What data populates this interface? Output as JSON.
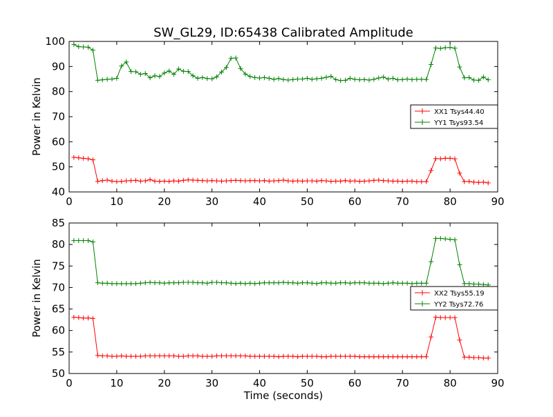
{
  "figure": {
    "title": "SW_GL29, ID:65438 Calibrated Amplitude"
  },
  "chart_data": [
    {
      "type": "line",
      "title": "SW_GL29, ID:65438 Calibrated Amplitude",
      "xlabel": "",
      "ylabel": "Power in Kelvin",
      "xlim": [
        0,
        90
      ],
      "ylim": [
        40,
        100
      ],
      "xticks": [
        0,
        10,
        20,
        30,
        40,
        50,
        60,
        70,
        80,
        90
      ],
      "yticks": [
        40,
        50,
        60,
        70,
        80,
        90,
        100
      ],
      "grid": false,
      "legend_position": "right",
      "x": [
        1,
        2,
        3,
        4,
        5,
        6,
        7,
        8,
        9,
        10,
        11,
        12,
        13,
        14,
        15,
        16,
        17,
        18,
        19,
        20,
        21,
        22,
        23,
        24,
        25,
        26,
        27,
        28,
        29,
        30,
        31,
        32,
        33,
        34,
        35,
        36,
        37,
        38,
        39,
        40,
        41,
        42,
        43,
        44,
        45,
        46,
        47,
        48,
        49,
        50,
        51,
        52,
        53,
        54,
        55,
        56,
        57,
        58,
        59,
        60,
        61,
        62,
        63,
        64,
        65,
        66,
        67,
        68,
        69,
        70,
        71,
        72,
        73,
        74,
        75,
        76,
        77,
        78,
        79,
        80,
        81,
        82,
        83,
        84,
        85,
        86,
        87,
        88
      ],
      "series": [
        {
          "name": "XX1 Tsys44.40",
          "color": "#ff0000",
          "values": [
            53.8,
            53.6,
            53.4,
            53.2,
            52.8,
            44.2,
            44.5,
            44.7,
            44.3,
            44.1,
            44.2,
            44.4,
            44.5,
            44.6,
            44.3,
            44.4,
            44.9,
            44.3,
            44.2,
            44.3,
            44.2,
            44.4,
            44.3,
            44.6,
            44.8,
            44.7,
            44.6,
            44.5,
            44.4,
            44.5,
            44.4,
            44.3,
            44.4,
            44.5,
            44.6,
            44.5,
            44.4,
            44.5,
            44.5,
            44.4,
            44.5,
            44.3,
            44.4,
            44.5,
            44.7,
            44.4,
            44.3,
            44.4,
            44.3,
            44.4,
            44.4,
            44.3,
            44.5,
            44.4,
            44.2,
            44.3,
            44.3,
            44.5,
            44.3,
            44.4,
            44.2,
            44.3,
            44.4,
            44.6,
            44.7,
            44.5,
            44.4,
            44.3,
            44.3,
            44.2,
            44.3,
            44.3,
            44.1,
            44.1,
            44.1,
            48.5,
            53.3,
            53.2,
            53.4,
            53.4,
            53.2,
            47.5,
            44.1,
            44.2,
            43.9,
            43.8,
            43.9,
            43.6
          ]
        },
        {
          "name": "YY1 Tsys93.54",
          "color": "#008000",
          "values": [
            98.8,
            97.9,
            97.8,
            97.7,
            96.5,
            84.5,
            84.7,
            84.9,
            85.0,
            85.3,
            90.2,
            91.8,
            88.0,
            87.9,
            86.9,
            87.2,
            85.5,
            86.3,
            86.0,
            87.4,
            88.2,
            86.9,
            89.0,
            88.1,
            88.0,
            86.3,
            85.3,
            85.6,
            85.2,
            85.1,
            85.9,
            87.8,
            89.6,
            93.3,
            93.4,
            89.2,
            87.0,
            86.0,
            85.6,
            85.4,
            85.6,
            85.3,
            84.9,
            85.2,
            84.8,
            84.6,
            84.8,
            85.0,
            85.0,
            85.3,
            84.9,
            85.1,
            85.3,
            85.7,
            86.1,
            84.8,
            84.4,
            84.5,
            85.3,
            84.9,
            84.7,
            84.8,
            84.6,
            84.9,
            85.4,
            85.8,
            85.0,
            85.3,
            84.7,
            84.8,
            85.0,
            84.8,
            84.9,
            84.9,
            84.8,
            90.8,
            97.4,
            97.2,
            97.5,
            97.6,
            97.3,
            89.8,
            85.5,
            85.6,
            84.6,
            84.5,
            85.8,
            84.7
          ]
        }
      ]
    },
    {
      "type": "line",
      "title": "",
      "xlabel": "Time (seconds)",
      "ylabel": "Power in Kelvin",
      "xlim": [
        0,
        90
      ],
      "ylim": [
        50,
        85
      ],
      "xticks": [
        0,
        10,
        20,
        30,
        40,
        50,
        60,
        70,
        80,
        90
      ],
      "yticks": [
        50,
        55,
        60,
        65,
        70,
        75,
        80,
        85
      ],
      "grid": false,
      "legend_position": "right",
      "x": [
        1,
        2,
        3,
        4,
        5,
        6,
        7,
        8,
        9,
        10,
        11,
        12,
        13,
        14,
        15,
        16,
        17,
        18,
        19,
        20,
        21,
        22,
        23,
        24,
        25,
        26,
        27,
        28,
        29,
        30,
        31,
        32,
        33,
        34,
        35,
        36,
        37,
        38,
        39,
        40,
        41,
        42,
        43,
        44,
        45,
        46,
        47,
        48,
        49,
        50,
        51,
        52,
        53,
        54,
        55,
        56,
        57,
        58,
        59,
        60,
        61,
        62,
        63,
        64,
        65,
        66,
        67,
        68,
        69,
        70,
        71,
        72,
        73,
        74,
        75,
        76,
        77,
        78,
        79,
        80,
        81,
        82,
        83,
        84,
        85,
        86,
        87,
        88
      ],
      "series": [
        {
          "name": "XX2 Tsys55.19",
          "color": "#ff0000",
          "values": [
            63.1,
            63.0,
            62.9,
            62.9,
            62.8,
            54.2,
            54.1,
            54.1,
            54.0,
            54.0,
            54.1,
            54.0,
            54.0,
            54.0,
            54.0,
            54.1,
            54.1,
            54.1,
            54.1,
            54.1,
            54.1,
            54.1,
            54.0,
            54.0,
            54.1,
            54.1,
            54.1,
            54.0,
            54.0,
            54.0,
            54.1,
            54.1,
            54.1,
            54.1,
            54.1,
            54.1,
            54.1,
            54.0,
            54.0,
            54.0,
            54.0,
            54.0,
            54.0,
            53.9,
            54.0,
            54.0,
            54.0,
            53.9,
            54.0,
            54.0,
            54.0,
            54.0,
            53.9,
            53.9,
            54.0,
            54.0,
            54.0,
            54.0,
            54.0,
            54.0,
            53.9,
            53.9,
            53.9,
            53.9,
            53.9,
            53.9,
            53.9,
            53.9,
            53.9,
            53.9,
            53.9,
            53.9,
            53.9,
            53.9,
            53.9,
            58.5,
            63.1,
            63.0,
            63.0,
            63.0,
            63.0,
            57.8,
            53.8,
            53.8,
            53.7,
            53.7,
            53.6,
            53.6
          ]
        },
        {
          "name": "YY2 Tsys72.76",
          "color": "#008000",
          "values": [
            80.9,
            80.9,
            80.9,
            80.9,
            80.6,
            71.1,
            71.0,
            71.0,
            70.9,
            70.9,
            70.9,
            70.9,
            70.9,
            70.9,
            71.0,
            71.1,
            71.2,
            71.1,
            71.1,
            71.0,
            71.1,
            71.1,
            71.1,
            71.2,
            71.2,
            71.2,
            71.1,
            71.1,
            71.0,
            71.2,
            71.2,
            71.1,
            71.1,
            71.0,
            70.9,
            71.0,
            70.9,
            71.0,
            70.9,
            71.0,
            71.1,
            71.1,
            71.1,
            71.1,
            71.2,
            71.1,
            71.1,
            71.0,
            71.1,
            71.1,
            71.0,
            70.9,
            71.1,
            71.1,
            71.0,
            71.0,
            71.1,
            71.1,
            71.0,
            71.1,
            71.1,
            71.1,
            71.0,
            71.0,
            71.0,
            70.9,
            71.0,
            71.1,
            71.0,
            71.0,
            71.0,
            70.9,
            71.0,
            71.0,
            71.0,
            76.0,
            81.4,
            81.4,
            81.3,
            81.2,
            81.1,
            75.3,
            70.9,
            70.9,
            70.8,
            70.8,
            70.7,
            70.6
          ]
        }
      ]
    }
  ]
}
